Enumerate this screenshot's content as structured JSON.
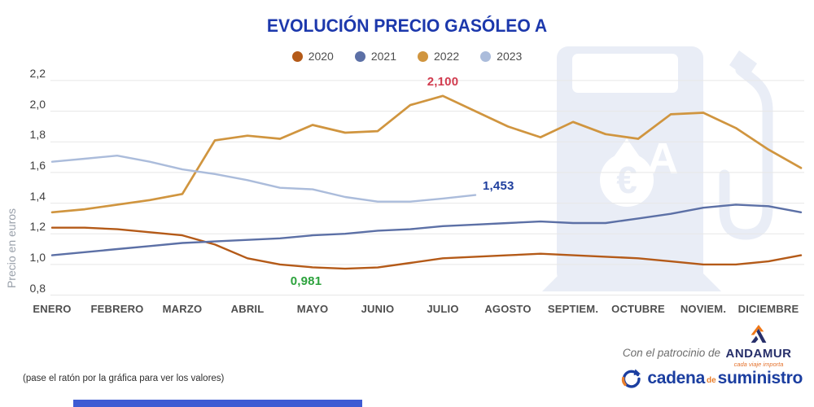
{
  "title": "EVOLUCIÓN PRECIO GASÓLEO A",
  "footnote": "(pase el ratón por la gráfica para ver los valores)",
  "sponsor": {
    "prefix": "Con el patrocinio de",
    "name": "ANDAMUR",
    "tagline": "cada viaje importa"
  },
  "brand": {
    "word1": "cadena",
    "word2": "de",
    "word3": "suministro"
  },
  "watermark": {
    "letter": "A",
    "currency": "€"
  },
  "colors": {
    "title_blue": "#1C38AC",
    "grid": "#E7E7E7",
    "watermark": "#E9EDF6",
    "annotation_red": "#D13B4E",
    "annotation_navy": "#1F3F9E",
    "annotation_green": "#2CA23C",
    "andamur_navy": "#272F6A",
    "andamur_orange": "#F07818",
    "brand_blue": "#1B3EA0",
    "brand_orange": "#E87E2B",
    "bottom_bar": "#3E5BD3"
  },
  "chart_data": {
    "type": "line",
    "title": "EVOLUCIÓN PRECIO GASÓLEO A",
    "ylabel": "Precio en euros",
    "x_unit": "half-month (2 data points per month)",
    "categories": [
      "ENERO",
      "FEBRERO",
      "MARZO",
      "ABRIL",
      "MAYO",
      "JUNIO",
      "JULIO",
      "AGOSTO",
      "SEPTIEM.",
      "OCTUBRE",
      "NOVIEM.",
      "DICIEMBRE"
    ],
    "ylim": [
      0.8,
      2.2
    ],
    "grid": true,
    "legend_position": "top",
    "yticks": [
      {
        "v": 0.8,
        "label": "0,8"
      },
      {
        "v": 1.0,
        "label": "1,0"
      },
      {
        "v": 1.2,
        "label": "1,2"
      },
      {
        "v": 1.4,
        "label": "1,4"
      },
      {
        "v": 1.6,
        "label": "1,6"
      },
      {
        "v": 1.8,
        "label": "1,8"
      },
      {
        "v": 2.0,
        "label": "2,0"
      },
      {
        "v": 2.2,
        "label": "2,2"
      }
    ],
    "series": [
      {
        "name": "2020",
        "color": "#B45A18",
        "values": [
          1.24,
          1.24,
          1.23,
          1.21,
          1.19,
          1.13,
          1.04,
          1.0,
          0.981,
          0.972,
          0.98,
          1.01,
          1.04,
          1.05,
          1.06,
          1.07,
          1.06,
          1.05,
          1.04,
          1.02,
          1.0,
          1.0,
          1.02,
          1.06
        ]
      },
      {
        "name": "2021",
        "color": "#5C70A6",
        "values": [
          1.06,
          1.08,
          1.1,
          1.12,
          1.14,
          1.15,
          1.16,
          1.17,
          1.19,
          1.2,
          1.22,
          1.23,
          1.25,
          1.26,
          1.27,
          1.28,
          1.27,
          1.27,
          1.3,
          1.33,
          1.37,
          1.39,
          1.38,
          1.34
        ]
      },
      {
        "name": "2022",
        "color": "#D0953F",
        "values": [
          1.34,
          1.36,
          1.39,
          1.42,
          1.46,
          1.81,
          1.84,
          1.82,
          1.91,
          1.86,
          1.87,
          2.04,
          2.1,
          2.0,
          1.9,
          1.83,
          1.93,
          1.85,
          1.82,
          1.98,
          1.99,
          1.89,
          1.75,
          1.63
        ]
      },
      {
        "name": "2023",
        "color": "#ABBCDB",
        "values": [
          1.67,
          1.69,
          1.71,
          1.67,
          1.62,
          1.59,
          1.55,
          1.5,
          1.49,
          1.44,
          1.41,
          1.41,
          1.43,
          1.453
        ]
      }
    ],
    "annotations": [
      {
        "text": "2,100",
        "value": 2.1,
        "series": "2022",
        "index": 12,
        "color": "#D13B4E",
        "placement": "above"
      },
      {
        "text": "1,453",
        "value": 1.453,
        "series": "2023",
        "index": 13,
        "color": "#1F3F9E",
        "placement": "end-right"
      },
      {
        "text": "0,981",
        "value": 0.981,
        "series": "2020",
        "index": 8,
        "color": "#2CA23C",
        "placement": "below"
      }
    ]
  }
}
